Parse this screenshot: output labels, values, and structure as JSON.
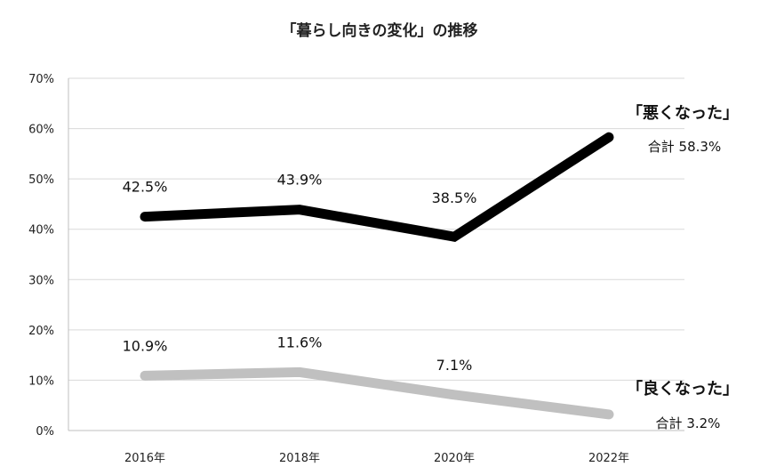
{
  "chart_data": {
    "type": "line",
    "title": "「暮らし向きの変化」の推移",
    "categories": [
      "2016年",
      "2018年",
      "2020年",
      "2022年"
    ],
    "ylim": [
      0,
      70
    ],
    "yticks": [
      0,
      10,
      20,
      30,
      40,
      50,
      60,
      70
    ],
    "ytick_suffix": "%",
    "grid": true,
    "series": [
      {
        "name": "「悪くなった」",
        "total_label": "合計 58.3%",
        "values": [
          42.5,
          43.9,
          38.5,
          58.3
        ],
        "labels": [
          "42.5%",
          "43.9%",
          "38.5%",
          ""
        ],
        "color": "#000000"
      },
      {
        "name": "「良くなった」",
        "total_label": "合計 3.2%",
        "values": [
          10.9,
          11.6,
          7.1,
          3.2
        ],
        "labels": [
          "10.9%",
          "11.6%",
          "7.1%",
          ""
        ],
        "color": "#c0c0c0"
      }
    ]
  }
}
